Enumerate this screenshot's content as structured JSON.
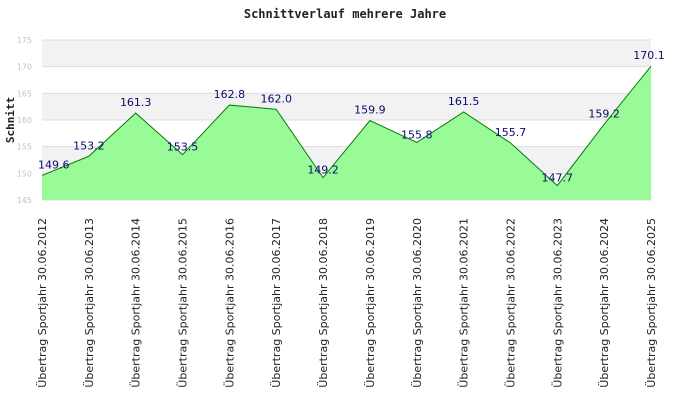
{
  "chart_data": {
    "type": "area",
    "title": "Schnittverlauf mehrere Jahre",
    "ylabel": "Schnitt",
    "xlabel": "",
    "ylim": [
      145,
      175
    ],
    "yticks": [
      145,
      150,
      155,
      160,
      165,
      170,
      175
    ],
    "grid": true,
    "categories": [
      "Übertrag Sportjahr 30.06.2012",
      "Übertrag Sportjahr 30.06.2013",
      "Übertrag Sportjahr 30.06.2014",
      "Übertrag Sportjahr 30.06.2015",
      "Übertrag Sportjahr 30.06.2016",
      "Übertrag Sportjahr 30.06.2017",
      "Übertrag Sportjahr 30.06.2018",
      "Übertrag Sportjahr 30.06.2019",
      "Übertrag Sportjahr 30.06.2020",
      "Übertrag Sportjahr 30.06.2021",
      "Übertrag Sportjahr 30.06.2022",
      "Übertrag Sportjahr 30.06.2023",
      "Übertrag Sportjahr 30.06.2024",
      "Übertrag Sportjahr 30.06.2025"
    ],
    "values": [
      149.6,
      153.2,
      161.3,
      153.5,
      162.8,
      162.0,
      149.2,
      159.9,
      155.8,
      161.5,
      155.7,
      147.7,
      159.2,
      170.1
    ],
    "labels": [
      "149.6",
      "153.2",
      "161.3",
      "153.5",
      "162.8",
      "162.0",
      "149.2",
      "159.9",
      "155.8",
      "161.5",
      "155.7",
      "147.7",
      "159.2",
      "170.1"
    ],
    "colors": {
      "fill": "#98fb98",
      "line": "#0a7a0a",
      "band": "#f2f2f2",
      "grid": "#dddddd",
      "label": "#0b0b6e"
    }
  }
}
